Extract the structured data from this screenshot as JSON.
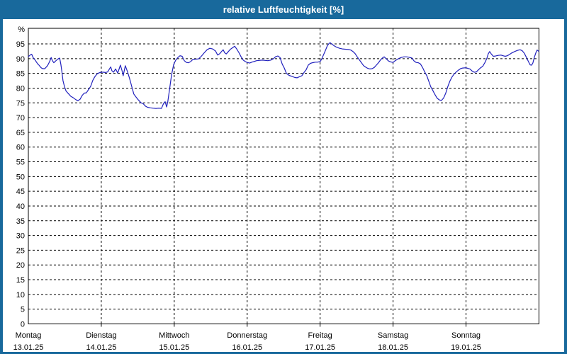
{
  "colors": {
    "titlebar_blue": "#18699c",
    "plot_background": "#ffffff",
    "grid_black": "#000000",
    "line_blue": "#2121bd"
  },
  "chart_data": {
    "type": "line",
    "title": "relative Luftfeuchtigkeit [%]",
    "ylabel_unit": "%",
    "ylim": [
      0,
      100.3
    ],
    "y_ticks": [
      0,
      5,
      10,
      15,
      20,
      25,
      30,
      35,
      40,
      45,
      50,
      55,
      60,
      65,
      70,
      75,
      80,
      85,
      90,
      95
    ],
    "grid": "dashed",
    "x_hours_total": 168,
    "x_axis_days": [
      {
        "name": "Montag",
        "date": "13.01.25"
      },
      {
        "name": "Dienstag",
        "date": "14.01.25"
      },
      {
        "name": "Mittwoch",
        "date": "15.01.25"
      },
      {
        "name": "Donnerstag",
        "date": "16.01.25"
      },
      {
        "name": "Freitag",
        "date": "17.01.25"
      },
      {
        "name": "Samstag",
        "date": "18.01.25"
      },
      {
        "name": "Sonntag",
        "date": "19.01.25"
      }
    ],
    "series": [
      {
        "name": "relative Luftfeuchtigkeit",
        "color": "#2121bd",
        "points": [
          [
            0,
            90.7
          ],
          [
            0.7,
            91.3
          ],
          [
            1.1,
            91.5
          ],
          [
            1.6,
            90.3
          ],
          [
            2.3,
            89.4
          ],
          [
            3,
            88.3
          ],
          [
            3.5,
            87.8
          ],
          [
            4.2,
            86.9
          ],
          [
            4.7,
            86.6
          ],
          [
            5.4,
            86.6
          ],
          [
            6.3,
            87.6
          ],
          [
            7,
            89
          ],
          [
            7.5,
            90.4
          ],
          [
            7.9,
            89.3
          ],
          [
            8.4,
            88.6
          ],
          [
            9.1,
            89.3
          ],
          [
            9.8,
            89.9
          ],
          [
            10.3,
            90.2
          ],
          [
            10.7,
            88
          ],
          [
            11,
            85.8
          ],
          [
            11.4,
            82.5
          ],
          [
            11.9,
            80.5
          ],
          [
            12.4,
            79
          ],
          [
            13.3,
            78
          ],
          [
            14,
            77.2
          ],
          [
            14.7,
            76.8
          ],
          [
            15.6,
            76.1
          ],
          [
            16.3,
            75.7
          ],
          [
            17,
            76.2
          ],
          [
            17.7,
            77.5
          ],
          [
            18.4,
            78.3
          ],
          [
            19.1,
            78.4
          ],
          [
            19.8,
            79.5
          ],
          [
            20.5,
            80.6
          ],
          [
            21.2,
            82.6
          ],
          [
            21.9,
            83.9
          ],
          [
            22.6,
            84.8
          ],
          [
            23.3,
            85.2
          ],
          [
            24,
            85.4
          ],
          [
            24.7,
            85.4
          ],
          [
            25.4,
            85.3
          ],
          [
            26.1,
            85.5
          ],
          [
            27.1,
            87.2
          ],
          [
            27.5,
            85.9
          ],
          [
            28,
            85.4
          ],
          [
            28.7,
            86.5
          ],
          [
            29.4,
            85.1
          ],
          [
            30.3,
            87.8
          ],
          [
            30.8,
            86
          ],
          [
            31.2,
            84.2
          ],
          [
            31.9,
            87.6
          ],
          [
            32.6,
            85.6
          ],
          [
            33.3,
            83.3
          ],
          [
            34,
            80.6
          ],
          [
            34.7,
            78
          ],
          [
            35.4,
            77
          ],
          [
            36.1,
            76.1
          ],
          [
            37.1,
            75
          ],
          [
            37.8,
            74.7
          ],
          [
            38.5,
            73.9
          ],
          [
            39.2,
            73.5
          ],
          [
            40.1,
            73.3
          ],
          [
            41,
            73.2
          ],
          [
            42,
            73.1
          ],
          [
            42.9,
            73.2
          ],
          [
            43.8,
            73.1
          ],
          [
            44.5,
            74.8
          ],
          [
            45,
            75.4
          ],
          [
            45.5,
            73.6
          ],
          [
            45.9,
            75.5
          ],
          [
            46.4,
            79.2
          ],
          [
            47.1,
            84.4
          ],
          [
            47.8,
            88
          ],
          [
            48.5,
            89.5
          ],
          [
            49.2,
            90.4
          ],
          [
            49.9,
            91
          ],
          [
            50.6,
            90.8
          ],
          [
            51.3,
            89.3
          ],
          [
            52,
            88.7
          ],
          [
            52.7,
            88.6
          ],
          [
            53.4,
            89
          ],
          [
            54.1,
            89.7
          ],
          [
            55,
            89.8
          ],
          [
            56,
            89.9
          ],
          [
            56.9,
            90.8
          ],
          [
            57.8,
            91.9
          ],
          [
            58.8,
            93
          ],
          [
            59.7,
            93.5
          ],
          [
            60.6,
            93.3
          ],
          [
            61.6,
            92.6
          ],
          [
            62.3,
            91.2
          ],
          [
            63,
            91.7
          ],
          [
            63.7,
            92.6
          ],
          [
            64.1,
            93
          ],
          [
            64.6,
            92
          ],
          [
            65.1,
            91.6
          ],
          [
            65.8,
            92.4
          ],
          [
            66.5,
            93.2
          ],
          [
            67.2,
            93.7
          ],
          [
            67.9,
            94.2
          ],
          [
            68.6,
            93.2
          ],
          [
            69.3,
            92
          ],
          [
            70,
            90.6
          ],
          [
            70.7,
            89.5
          ],
          [
            71.4,
            89
          ],
          [
            72,
            88.7
          ],
          [
            72.8,
            88.5
          ],
          [
            73.5,
            88.8
          ],
          [
            74.2,
            89
          ],
          [
            75.1,
            89.3
          ],
          [
            76,
            89.4
          ],
          [
            77,
            89.5
          ],
          [
            77.9,
            89.4
          ],
          [
            78.8,
            89.3
          ],
          [
            79.8,
            89.5
          ],
          [
            80.7,
            90
          ],
          [
            81.4,
            90.7
          ],
          [
            82.1,
            90.9
          ],
          [
            82.8,
            90.4
          ],
          [
            83.5,
            88.2
          ],
          [
            84.2,
            86.8
          ],
          [
            84.9,
            85
          ],
          [
            85.8,
            84.3
          ],
          [
            86.7,
            84
          ],
          [
            87.7,
            83.6
          ],
          [
            88.4,
            83.5
          ],
          [
            89.1,
            83.8
          ],
          [
            90,
            84.2
          ],
          [
            90.7,
            85.3
          ],
          [
            91.4,
            86.2
          ],
          [
            92.1,
            87.8
          ],
          [
            92.8,
            88.4
          ],
          [
            93.5,
            88.6
          ],
          [
            94.4,
            88.8
          ],
          [
            95.1,
            88.8
          ],
          [
            96,
            89
          ],
          [
            96.5,
            89.8
          ],
          [
            97,
            91
          ],
          [
            97.5,
            92.2
          ],
          [
            98,
            93.4
          ],
          [
            98.4,
            94.4
          ],
          [
            98.9,
            95.1
          ],
          [
            99.3,
            95.4
          ],
          [
            100,
            94.8
          ],
          [
            100.7,
            94.3
          ],
          [
            101.4,
            93.9
          ],
          [
            102.4,
            93.5
          ],
          [
            103.3,
            93.3
          ],
          [
            104.2,
            93.2
          ],
          [
            105.2,
            93.1
          ],
          [
            106.1,
            92.9
          ],
          [
            106.8,
            92.4
          ],
          [
            107.5,
            91.7
          ],
          [
            108.2,
            90.6
          ],
          [
            108.9,
            89.6
          ],
          [
            109.6,
            88.6
          ],
          [
            110.3,
            87.6
          ],
          [
            111,
            87.1
          ],
          [
            111.7,
            86.7
          ],
          [
            112.4,
            86.5
          ],
          [
            113.1,
            86.6
          ],
          [
            113.8,
            87
          ],
          [
            114.5,
            87.8
          ],
          [
            115.2,
            88.6
          ],
          [
            115.9,
            89.6
          ],
          [
            116.6,
            90.3
          ],
          [
            117.1,
            90.6
          ],
          [
            117.8,
            89.9
          ],
          [
            118.5,
            89.2
          ],
          [
            119.2,
            88.9
          ],
          [
            120,
            88.7
          ],
          [
            120.6,
            89.2
          ],
          [
            121.3,
            89.7
          ],
          [
            122,
            90.1
          ],
          [
            122.7,
            90.4
          ],
          [
            123.6,
            90.6
          ],
          [
            124.5,
            90.6
          ],
          [
            125.5,
            90.4
          ],
          [
            126.2,
            90.2
          ],
          [
            126.9,
            89.2
          ],
          [
            127.6,
            88.7
          ],
          [
            128.3,
            88.6
          ],
          [
            129,
            88.2
          ],
          [
            129.7,
            87
          ],
          [
            130.4,
            85.5
          ],
          [
            131.1,
            84.2
          ],
          [
            131.8,
            82.2
          ],
          [
            132.4,
            80.5
          ],
          [
            133.1,
            79.2
          ],
          [
            133.8,
            77.8
          ],
          [
            134.5,
            76.6
          ],
          [
            135.2,
            76
          ],
          [
            135.9,
            75.8
          ],
          [
            136.6,
            76.6
          ],
          [
            137.3,
            78.2
          ],
          [
            138,
            80.5
          ],
          [
            138.7,
            82.4
          ],
          [
            139.4,
            83.8
          ],
          [
            140.1,
            84.8
          ],
          [
            140.8,
            85.5
          ],
          [
            141.5,
            86.1
          ],
          [
            142.2,
            86.6
          ],
          [
            142.9,
            86.8
          ],
          [
            144,
            86.9
          ],
          [
            144.6,
            86.7
          ],
          [
            145.3,
            86.5
          ],
          [
            146,
            85.8
          ],
          [
            146.7,
            85.4
          ],
          [
            147.4,
            85.5
          ],
          [
            148.1,
            86.2
          ],
          [
            148.8,
            86.9
          ],
          [
            149.5,
            87.4
          ],
          [
            150.2,
            88.6
          ],
          [
            150.9,
            90.2
          ],
          [
            151.3,
            91.6
          ],
          [
            151.8,
            92.4
          ],
          [
            152.3,
            91.6
          ],
          [
            153,
            90.8
          ],
          [
            153.7,
            90.9
          ],
          [
            154.6,
            91.1
          ],
          [
            155.5,
            91.2
          ],
          [
            156.2,
            91
          ],
          [
            156.9,
            90.8
          ],
          [
            157.6,
            91
          ],
          [
            158.3,
            91.4
          ],
          [
            159,
            91.9
          ],
          [
            160,
            92.4
          ],
          [
            160.9,
            92.8
          ],
          [
            161.8,
            93
          ],
          [
            162.5,
            92.7
          ],
          [
            163.2,
            91.8
          ],
          [
            163.9,
            90.4
          ],
          [
            164.6,
            88.9
          ],
          [
            165.1,
            87.9
          ],
          [
            165.6,
            87.8
          ],
          [
            166,
            88.5
          ],
          [
            166.5,
            90.5
          ],
          [
            167,
            92
          ],
          [
            167.4,
            92.9
          ],
          [
            167.9,
            92.5
          ]
        ]
      }
    ]
  }
}
